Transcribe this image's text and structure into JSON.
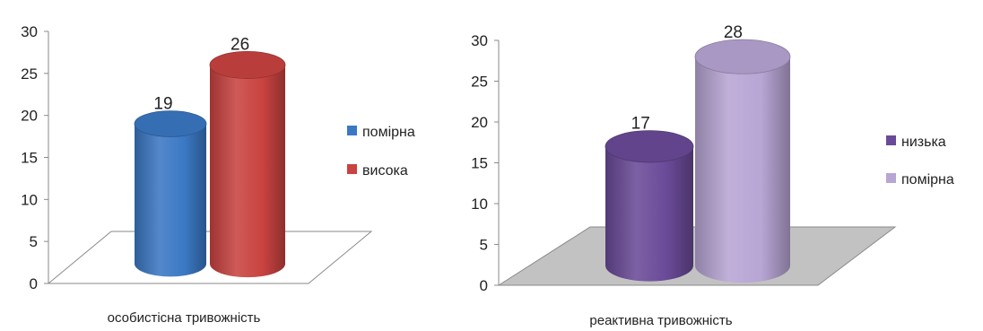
{
  "chart_data": [
    {
      "type": "bar",
      "style": "3d-cylinder",
      "categories": [
        "особистісна тривожність"
      ],
      "series": [
        {
          "name": "помірна",
          "values": [
            19
          ],
          "color": "#3b78c4"
        },
        {
          "name": "висока",
          "values": [
            26
          ],
          "color": "#c94340"
        }
      ],
      "ylim": [
        0,
        30
      ],
      "yticks": [
        "0",
        "5",
        "10",
        "15",
        "20",
        "25",
        "30"
      ],
      "legend": "right",
      "floor_color": "#ffffff"
    },
    {
      "type": "bar",
      "style": "3d-cylinder",
      "categories": [
        "реактивна тривожність"
      ],
      "series": [
        {
          "name": "низька",
          "values": [
            17
          ],
          "color": "#6a4a98"
        },
        {
          "name": "помірна",
          "values": [
            28
          ],
          "color": "#b7a5d4"
        }
      ],
      "ylim": [
        0,
        30
      ],
      "yticks": [
        "0",
        "5",
        "10",
        "15",
        "20",
        "25",
        "30"
      ],
      "legend": "right",
      "floor_color": "#c2c2c2"
    }
  ]
}
